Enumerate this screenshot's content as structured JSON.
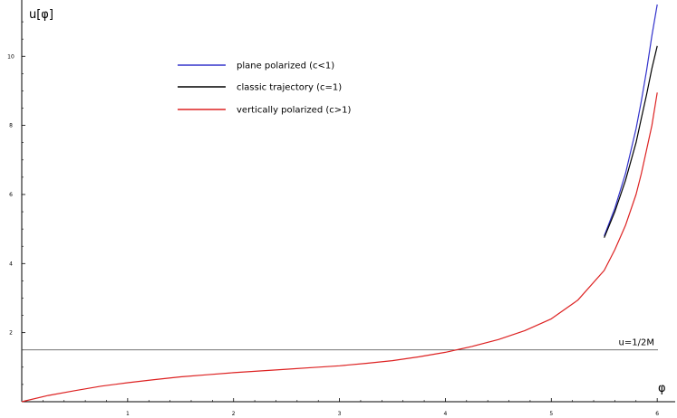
{
  "chart_data": {
    "type": "line",
    "title": "",
    "xlabel": "φ",
    "ylabel": "u[φ]",
    "xlim": [
      0,
      6.05
    ],
    "ylim": [
      0,
      11.5
    ],
    "x_ticks": [
      1,
      2,
      3,
      4,
      5,
      6
    ],
    "x_tick_labels": [
      "1",
      "2",
      "3",
      "4",
      "5",
      "6"
    ],
    "y_ticks": [
      2,
      4,
      6,
      8,
      10
    ],
    "y_tick_labels": [
      "2",
      "4",
      "6",
      "8",
      "10"
    ],
    "grid": false,
    "legend_position": "top-left",
    "reference_line": {
      "y": 1.5,
      "label": "u=1/2M"
    },
    "series": [
      {
        "name": "plane polarized (c<1)",
        "color": "#3333cc",
        "x": [
          5.5,
          5.6,
          5.7,
          5.8,
          5.85,
          5.9,
          5.95,
          6.0
        ],
        "y": [
          4.8,
          5.6,
          6.6,
          7.9,
          8.7,
          9.6,
          10.6,
          11.5
        ]
      },
      {
        "name": "classic trajectory (c=1)",
        "color": "#000000",
        "x": [
          5.5,
          5.6,
          5.7,
          5.8,
          5.85,
          5.9,
          5.95,
          6.0
        ],
        "y": [
          4.75,
          5.5,
          6.4,
          7.5,
          8.2,
          8.9,
          9.65,
          10.3
        ]
      },
      {
        "name": "vertically polarized (c>1)",
        "color": "#dd2222",
        "x": [
          0,
          0.25,
          0.5,
          0.75,
          1,
          1.25,
          1.5,
          1.75,
          2,
          2.25,
          2.5,
          2.75,
          3,
          3.25,
          3.5,
          3.75,
          4,
          4.25,
          4.5,
          4.75,
          5,
          5.25,
          5.5,
          5.6,
          5.7,
          5.8,
          5.85,
          5.9,
          5.95,
          6.0
        ],
        "y": [
          0,
          0.18,
          0.32,
          0.45,
          0.55,
          0.64,
          0.72,
          0.78,
          0.84,
          0.89,
          0.94,
          0.99,
          1.04,
          1.11,
          1.19,
          1.3,
          1.43,
          1.6,
          1.8,
          2.06,
          2.4,
          2.94,
          3.8,
          4.4,
          5.1,
          6.0,
          6.6,
          7.3,
          8.0,
          8.95
        ]
      }
    ]
  }
}
